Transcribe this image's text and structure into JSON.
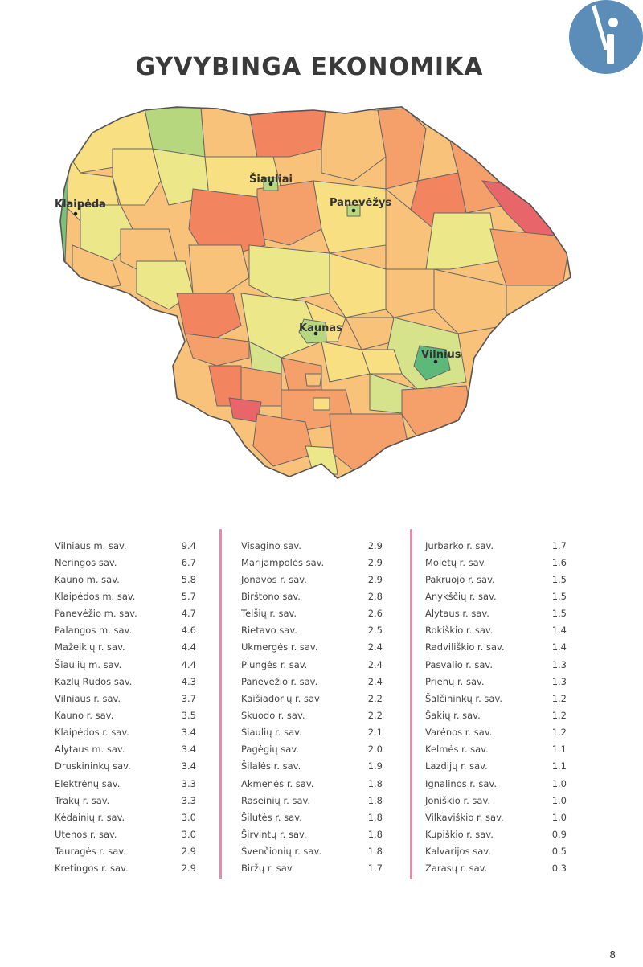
{
  "title": "GYVYBINGA EKONOMIKA",
  "logo": {
    "icon": "info-i-logo-icon",
    "color": "#5b8db8"
  },
  "colors": {
    "scale": [
      "#e8666a",
      "#f2845f",
      "#f5a06a",
      "#f8c27a",
      "#f8df82",
      "#ece88a",
      "#d6e38a",
      "#b6d77e",
      "#5cb97a"
    ],
    "divider": "#e28bab"
  },
  "map": {
    "cities": [
      "Klaipėda",
      "Šiauliai",
      "Panevėžys",
      "Kaunas",
      "Vilnius"
    ]
  },
  "table": {
    "columns": [
      [
        {
          "name": "Vilniaus m. sav.",
          "value": "9.4"
        },
        {
          "name": "Neringos sav.",
          "value": "6.7"
        },
        {
          "name": "Kauno m. sav.",
          "value": "5.8"
        },
        {
          "name": "Klaipėdos m. sav.",
          "value": "5.7"
        },
        {
          "name": "Panevėžio m. sav.",
          "value": "4.7"
        },
        {
          "name": "Palangos m. sav.",
          "value": "4.6"
        },
        {
          "name": "Mažeikių r. sav.",
          "value": "4.4"
        },
        {
          "name": "Šiaulių m. sav.",
          "value": "4.4"
        },
        {
          "name": "Kazlų Rūdos sav.",
          "value": "4.3"
        },
        {
          "name": "Vilniaus r. sav.",
          "value": "3.7"
        },
        {
          "name": "Kauno r. sav.",
          "value": "3.5"
        },
        {
          "name": "Klaipėdos r. sav.",
          "value": "3.4"
        },
        {
          "name": "Alytaus m. sav.",
          "value": "3.4"
        },
        {
          "name": "Druskininkų sav.",
          "value": "3.4"
        },
        {
          "name": "Elektrėnų sav.",
          "value": "3.3"
        },
        {
          "name": "Trakų r. sav.",
          "value": "3.3"
        },
        {
          "name": "Kėdainių r. sav.",
          "value": "3.0"
        },
        {
          "name": "Utenos r. sav.",
          "value": "3.0"
        },
        {
          "name": "Tauragės r. sav.",
          "value": "2.9"
        },
        {
          "name": "Kretingos r. sav.",
          "value": "2.9"
        }
      ],
      [
        {
          "name": "Visagino sav.",
          "value": "2.9"
        },
        {
          "name": "Marijampolės sav.",
          "value": "2.9"
        },
        {
          "name": "Jonavos r. sav.",
          "value": "2.9"
        },
        {
          "name": "Birštono sav.",
          "value": "2.8"
        },
        {
          "name": "Telšių r. sav.",
          "value": "2.6"
        },
        {
          "name": "Rietavo sav.",
          "value": "2.5"
        },
        {
          "name": "Ukmergės r. sav.",
          "value": "2.4"
        },
        {
          "name": "Plungės r. sav.",
          "value": "2.4"
        },
        {
          "name": "Panevėžio r. sav.",
          "value": "2.4"
        },
        {
          "name": "Kaišiadorių r. sav",
          "value": "2.2"
        },
        {
          "name": "Skuodo r. sav.",
          "value": "2.2"
        },
        {
          "name": "Šiaulių r. sav.",
          "value": "2.1"
        },
        {
          "name": "Pagėgių sav.",
          "value": "2.0"
        },
        {
          "name": "Šilalės r. sav.",
          "value": "1.9"
        },
        {
          "name": "Akmenės r. sav.",
          "value": "1.8"
        },
        {
          "name": "Raseinių r. sav.",
          "value": "1.8"
        },
        {
          "name": "Šilutės r. sav.",
          "value": "1.8"
        },
        {
          "name": "Širvintų r. sav.",
          "value": "1.8"
        },
        {
          "name": "Švenčionių r. sav.",
          "value": "1.8"
        },
        {
          "name": "Biržų r. sav.",
          "value": "1.7"
        }
      ],
      [
        {
          "name": "Jurbarko r. sav.",
          "value": "1.7"
        },
        {
          "name": "Molėtų r. sav.",
          "value": "1.6"
        },
        {
          "name": "Pakruojo r. sav.",
          "value": "1.5"
        },
        {
          "name": "Anykščių r. sav.",
          "value": "1.5"
        },
        {
          "name": "Alytaus r. sav.",
          "value": "1.5"
        },
        {
          "name": "Rokiškio r. sav.",
          "value": "1.4"
        },
        {
          "name": "Radviliškio r. sav.",
          "value": "1.4"
        },
        {
          "name": "Pasvalio r. sav.",
          "value": "1.3"
        },
        {
          "name": "Prienų r. sav.",
          "value": "1.3"
        },
        {
          "name": "Šalčininkų r. sav.",
          "value": "1.2"
        },
        {
          "name": "Šakių r. sav.",
          "value": "1.2"
        },
        {
          "name": "Varėnos r. sav.",
          "value": "1.2"
        },
        {
          "name": "Kelmės r. sav.",
          "value": "1.1"
        },
        {
          "name": "Lazdijų r. sav.",
          "value": "1.1"
        },
        {
          "name": "Ignalinos r. sav.",
          "value": "1.0"
        },
        {
          "name": "Joniškio r. sav.",
          "value": "1.0"
        },
        {
          "name": "Vilkaviškio r. sav.",
          "value": "1.0"
        },
        {
          "name": "Kupiškio r. sav.",
          "value": "0.9"
        },
        {
          "name": "Kalvarijos sav.",
          "value": "0.5"
        },
        {
          "name": "Zarasų r. sav.",
          "value": "0.3"
        }
      ]
    ]
  },
  "page_number": "8"
}
